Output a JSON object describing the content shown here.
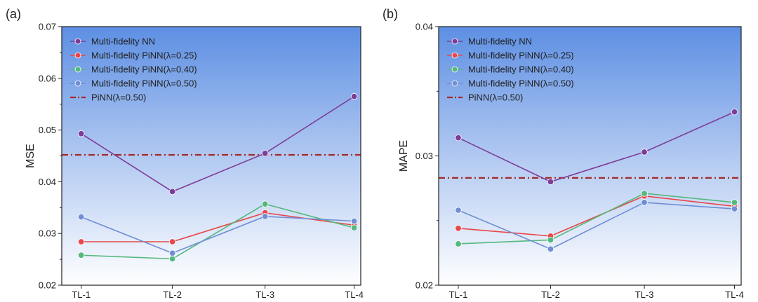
{
  "chart_data": [
    {
      "type": "line",
      "panel_label": "(a)",
      "ylabel": "MSE",
      "xlabel": "",
      "categories": [
        "TL-1",
        "TL-2",
        "TL-3",
        "TL-4"
      ],
      "ylim": [
        0.02,
        0.07
      ],
      "yticks": [
        "0.02",
        "0.03",
        "0.04",
        "0.05",
        "0.06",
        "0.07"
      ],
      "legend_position": "top-left",
      "grid": false,
      "series": [
        {
          "name": "Multi-fidelity NN",
          "color": "#7d3c98",
          "values": [
            0.0493,
            0.0381,
            0.0455,
            0.0565
          ]
        },
        {
          "name": "Multi-fidelity PiNN(λ=0.25)",
          "color": "#e8474a",
          "values": [
            0.0284,
            0.0284,
            0.034,
            0.0316
          ]
        },
        {
          "name": "Multi-fidelity PiNN(λ=0.40)",
          "color": "#55b87c",
          "values": [
            0.0258,
            0.0251,
            0.0357,
            0.0311
          ]
        },
        {
          "name": "Multi-fidelity PiNN(λ=0.50)",
          "color": "#6f8ed4",
          "values": [
            0.0332,
            0.0262,
            0.0333,
            0.0324
          ]
        }
      ],
      "reference": {
        "name": "PiNN(λ=0.50)",
        "color": "#a52a2a",
        "value": 0.0452
      }
    },
    {
      "type": "line",
      "panel_label": "(b)",
      "ylabel": "MAPE",
      "xlabel": "",
      "categories": [
        "TL-1",
        "TL-2",
        "TL-3",
        "TL-4"
      ],
      "ylim": [
        0.02,
        0.04
      ],
      "yticks": [
        "0.02",
        "0.03",
        "0.04"
      ],
      "legend_position": "top-left",
      "grid": false,
      "series": [
        {
          "name": "Multi-fidelity NN",
          "color": "#7d3c98",
          "values": [
            0.0314,
            0.028,
            0.0303,
            0.0334
          ]
        },
        {
          "name": "Multi-fidelity PiNN(λ=0.25)",
          "color": "#e8474a",
          "values": [
            0.0244,
            0.0238,
            0.0269,
            0.0261
          ]
        },
        {
          "name": "Multi-fidelity PiNN(λ=0.40)",
          "color": "#55b87c",
          "values": [
            0.0232,
            0.0235,
            0.0271,
            0.0264
          ]
        },
        {
          "name": "Multi-fidelity PiNN(λ=0.50)",
          "color": "#6f8ed4",
          "values": [
            0.0258,
            0.0228,
            0.0264,
            0.0259
          ]
        }
      ],
      "reference": {
        "name": "PiNN(λ=0.50)",
        "color": "#a52a2a",
        "value": 0.0283
      }
    }
  ]
}
